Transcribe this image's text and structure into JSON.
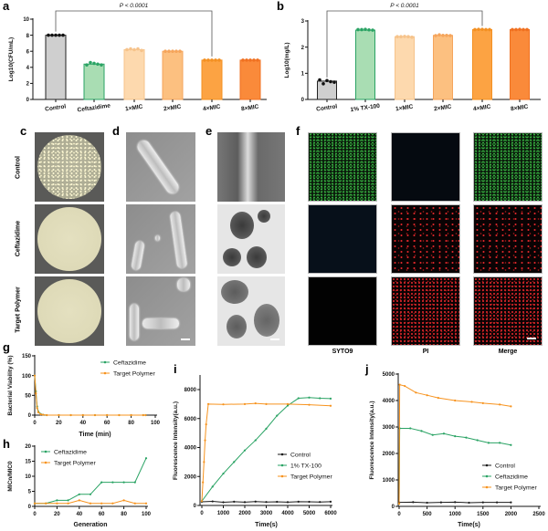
{
  "panels": {
    "a": "a",
    "b": "b",
    "c": "c",
    "d": "d",
    "e": "e",
    "f": "f",
    "g": "g",
    "h": "h",
    "i": "i",
    "j": "j"
  },
  "image_rows": [
    "Control",
    "Ceftazidime",
    "Target Polymer"
  ],
  "fluorescence_columns": [
    "SYTO9",
    "PI",
    "Merge"
  ],
  "colors": {
    "control": "#1a1a1a",
    "ceftazidime": "#2aa364",
    "tx100": "#2aa364",
    "target_polymer": "#f7931e",
    "syto9": "#2fae3a",
    "pi": "#d8262a"
  },
  "chart_data": [
    {
      "id": "a",
      "type": "bar",
      "categories": [
        "Control",
        "Ceftazidime",
        "1×MIC",
        "2×MIC",
        "4×MIC",
        "8×MIC"
      ],
      "values": [
        8.0,
        4.4,
        6.2,
        6.0,
        4.9,
        4.9
      ],
      "points": [
        [
          8,
          8,
          8,
          8,
          8
        ],
        [
          4.3,
          4.6,
          4.5,
          4.4,
          4.3
        ],
        [
          6.2,
          6.3,
          6.2,
          6.3,
          6.1
        ],
        [
          6.0,
          6.0,
          6.0,
          6.0,
          6.0
        ],
        [
          4.9,
          4.9,
          4.9,
          4.9,
          4.9
        ],
        [
          4.9,
          4.9,
          4.9,
          4.9,
          4.9
        ]
      ],
      "ylabel": "Log10(CFU/mL)",
      "ylim": [
        0,
        10
      ],
      "yticks": [
        0,
        2,
        4,
        6,
        8,
        10
      ],
      "annotation": "P < 0.0001",
      "bracket": [
        "Control",
        "4×MIC"
      ],
      "fills": [
        "#cfcfcf",
        "#a9ddb3",
        "#fdd9ae",
        "#fcc080",
        "#fca343",
        "#fa8a3a"
      ],
      "edges": [
        "#222222",
        "#2aa364",
        "#f6c38b",
        "#f5a55c",
        "#f39022",
        "#f07020"
      ]
    },
    {
      "id": "b",
      "type": "bar",
      "categories": [
        "Control",
        "1% TX-100",
        "1×MIC",
        "2×MIC",
        "4×MIC",
        "8×MIC"
      ],
      "values": [
        0.7,
        2.65,
        2.4,
        2.45,
        2.67,
        2.67
      ],
      "points": [
        [
          0.75,
          0.6,
          0.72,
          0.68,
          0.66
        ],
        [
          2.67,
          2.67,
          2.68,
          2.66,
          2.65
        ],
        [
          2.4,
          2.4,
          2.41,
          2.4,
          2.38
        ],
        [
          2.44,
          2.47,
          2.45,
          2.45,
          2.44
        ],
        [
          2.67,
          2.68,
          2.68,
          2.67,
          2.67
        ],
        [
          2.67,
          2.67,
          2.68,
          2.67,
          2.67
        ]
      ],
      "ylabel": "Log10(mg/L)",
      "ylim": [
        0,
        3
      ],
      "yticks": [
        0,
        1,
        2,
        3
      ],
      "annotation": "P < 0.0001",
      "bracket": [
        "Control",
        "4×MIC"
      ],
      "fills": [
        "#cfcfcf",
        "#a9ddb3",
        "#fdd9ae",
        "#fcc080",
        "#fca343",
        "#fa8a3a"
      ],
      "edges": [
        "#222222",
        "#2aa364",
        "#f6c38b",
        "#f5a55c",
        "#f39022",
        "#f07020"
      ]
    },
    {
      "id": "g",
      "type": "line",
      "xlabel": "Time (min)",
      "ylabel": "Bacterial Viability (%)",
      "xlim": [
        0,
        100
      ],
      "ylim": [
        0,
        150
      ],
      "xticks": [
        0,
        20,
        40,
        60,
        80,
        100
      ],
      "yticks": [
        0,
        50,
        100,
        150
      ],
      "legend": "top-right",
      "series": [
        {
          "name": "Ceftazidime",
          "color": "#2aa364",
          "x": [
            0,
            1,
            2,
            3,
            5,
            7,
            10,
            20,
            30,
            40,
            50,
            60,
            70,
            80,
            90,
            92
          ],
          "y": [
            100,
            60,
            22,
            9,
            3,
            1,
            0,
            0,
            0,
            0,
            0,
            0,
            0,
            0,
            0,
            0
          ]
        },
        {
          "name": "Target Polymer",
          "color": "#f7931e",
          "x": [
            0,
            1,
            2,
            3,
            5,
            7,
            10,
            20,
            30,
            40,
            50,
            60,
            70,
            80,
            90,
            92
          ],
          "y": [
            100,
            55,
            18,
            7,
            2,
            1,
            0,
            0,
            0,
            0,
            0,
            0,
            0,
            0,
            0,
            0
          ]
        }
      ]
    },
    {
      "id": "h",
      "type": "line",
      "xlabel": "Generation",
      "ylabel": "MICn/MIC0",
      "xlim": [
        0,
        100
      ],
      "ylim": [
        0,
        20
      ],
      "xticks": [
        0,
        20,
        40,
        60,
        80,
        100
      ],
      "yticks": [
        0,
        5,
        10,
        15,
        20
      ],
      "legend": "top-left",
      "series": [
        {
          "name": "Ceftazidime",
          "color": "#2aa364",
          "x": [
            0,
            10,
            20,
            30,
            40,
            50,
            60,
            70,
            80,
            90,
            100
          ],
          "y": [
            1,
            1,
            2,
            2,
            4,
            4,
            8,
            8,
            8,
            8,
            16
          ]
        },
        {
          "name": "Target Polymer",
          "color": "#f7931e",
          "x": [
            0,
            10,
            20,
            30,
            40,
            50,
            60,
            70,
            80,
            90,
            100
          ],
          "y": [
            1,
            1,
            1,
            1,
            2,
            1,
            1,
            1,
            2,
            1,
            1
          ]
        }
      ]
    },
    {
      "id": "i",
      "type": "line",
      "xlabel": "Time(s)",
      "ylabel": "Fluorescence Intensity(a.u.)",
      "xlim": [
        0,
        6000
      ],
      "ylim": [
        0,
        8000
      ],
      "xticks": [
        0,
        1000,
        2000,
        3000,
        4000,
        5000,
        6000
      ],
      "yticks": [
        0,
        2000,
        4000,
        6000,
        8000
      ],
      "legend": "center-right",
      "series": [
        {
          "name": "Control",
          "color": "#1a1a1a",
          "x": [
            0,
            500,
            1000,
            1500,
            2000,
            2500,
            3000,
            3500,
            4000,
            4500,
            5000,
            5500,
            6000
          ],
          "y": [
            250,
            280,
            220,
            260,
            230,
            270,
            240,
            250,
            230,
            260,
            250,
            240,
            260
          ]
        },
        {
          "name": "1% TX-100",
          "color": "#2aa364",
          "x": [
            0,
            500,
            1000,
            1500,
            2000,
            2500,
            3000,
            3500,
            4000,
            4500,
            5000,
            5500,
            6000
          ],
          "y": [
            300,
            1300,
            2200,
            3000,
            3800,
            4500,
            5300,
            6200,
            6900,
            7400,
            7450,
            7400,
            7380
          ]
        },
        {
          "name": "Target Polymer",
          "color": "#f7931e",
          "x": [
            0,
            50,
            100,
            150,
            200,
            300,
            1000,
            2000,
            2500,
            3000,
            4000,
            5000,
            6000
          ],
          "y": [
            300,
            1600,
            3000,
            4500,
            5600,
            7000,
            6980,
            7000,
            7050,
            7000,
            7000,
            6950,
            6880
          ]
        }
      ]
    },
    {
      "id": "j",
      "type": "line",
      "xlabel": "Time(s)",
      "ylabel": "Fluorescence Intensity(a.u.)",
      "xlim": [
        0,
        2500
      ],
      "ylim": [
        0,
        5000
      ],
      "xticks": [
        0,
        500,
        1000,
        1500,
        2000,
        2500
      ],
      "yticks": [
        0,
        1000,
        2000,
        3000,
        4000,
        5000
      ],
      "legend": "bottom-right",
      "series": [
        {
          "name": "Control",
          "color": "#1a1a1a",
          "x": [
            0,
            250,
            500,
            750,
            1000,
            1250,
            1500,
            1750,
            2000
          ],
          "y": [
            150,
            160,
            140,
            150,
            160,
            140,
            150,
            150,
            150
          ]
        },
        {
          "name": "Ceftazidime",
          "color": "#2aa364",
          "x": [
            0,
            10,
            200,
            400,
            600,
            800,
            1000,
            1200,
            1400,
            1600,
            1800,
            2000
          ],
          "y": [
            100,
            2950,
            2950,
            2850,
            2700,
            2750,
            2650,
            2600,
            2500,
            2400,
            2400,
            2320
          ]
        },
        {
          "name": "Target Polymer",
          "color": "#f7931e",
          "x": [
            0,
            10,
            100,
            300,
            500,
            700,
            1000,
            1300,
            1500,
            1800,
            2000
          ],
          "y": [
            100,
            4600,
            4550,
            4300,
            4200,
            4100,
            4000,
            3950,
            3900,
            3850,
            3780
          ]
        }
      ]
    }
  ]
}
